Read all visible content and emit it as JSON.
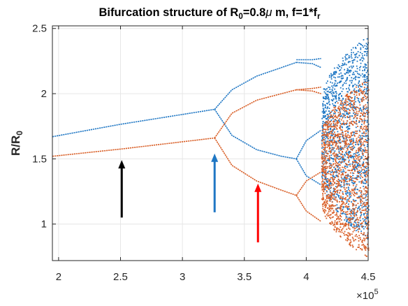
{
  "chart_data": {
    "type": "scatter",
    "title_parts": {
      "prefix": "Bifurcation structure  of R",
      "sub_0": "0",
      "mid": "=0.8",
      "mu": "μ",
      "unit_f": " m, f=1*f",
      "sub_r": "r"
    },
    "ylabel_main": "R/R",
    "ylabel_sub": "0",
    "x_exponent_times": "×10",
    "x_exponent_power": "5",
    "xlim": [
      195000,
      450000
    ],
    "ylim": [
      0.72,
      2.52
    ],
    "x_ticks": [
      {
        "value": 200000,
        "label": "2"
      },
      {
        "value": 250000,
        "label": "2.5"
      },
      {
        "value": 300000,
        "label": "3"
      },
      {
        "value": 350000,
        "label": "3.5"
      },
      {
        "value": 400000,
        "label": "4"
      },
      {
        "value": 450000,
        "label": "4.5"
      }
    ],
    "y_ticks": [
      {
        "value": 1,
        "label": "1"
      },
      {
        "value": 1.5,
        "label": "1.5"
      },
      {
        "value": 2,
        "label": "2"
      },
      {
        "value": 2.5,
        "label": "2.5"
      }
    ],
    "grid": true,
    "series": [
      {
        "color": "#1f77c4",
        "branches": [
          {
            "x": [
              195000,
              250000,
              326000
            ],
            "y": [
              1.67,
              1.765,
              1.88
            ]
          },
          {
            "x": [
              326000,
              340000,
              360000,
              380000,
              392000
            ],
            "y": [
              1.88,
              2.03,
              2.135,
              2.2,
              2.24
            ]
          },
          {
            "x": [
              326000,
              340000,
              360000,
              380000,
              392000
            ],
            "y": [
              1.88,
              1.68,
              1.57,
              1.52,
              1.5
            ]
          },
          {
            "x": [
              392000,
              405000,
              412000
            ],
            "y": [
              2.26,
              2.26,
              2.27
            ]
          },
          {
            "x": [
              392000,
              405000,
              412000
            ],
            "y": [
              2.24,
              2.23,
              2.2
            ]
          },
          {
            "x": [
              392000,
              400000,
              412000
            ],
            "y": [
              1.5,
              1.64,
              1.72
            ]
          },
          {
            "x": [
              392000,
              400000,
              412000
            ],
            "y": [
              1.5,
              1.37,
              1.3
            ]
          }
        ],
        "chaos": {
          "x_start": 412000,
          "x_end": 450000,
          "y_min": 0.88,
          "y_max": 2.45
        }
      },
      {
        "color": "#d95f27",
        "branches": [
          {
            "x": [
              195000,
              250000,
              326000
            ],
            "y": [
              1.52,
              1.575,
              1.66
            ]
          },
          {
            "x": [
              326000,
              340000,
              360000,
              380000,
              392000
            ],
            "y": [
              1.66,
              1.85,
              1.95,
              2.0,
              2.03
            ]
          },
          {
            "x": [
              326000,
              340000,
              360000,
              380000,
              392000
            ],
            "y": [
              1.66,
              1.45,
              1.33,
              1.26,
              1.22
            ]
          },
          {
            "x": [
              392000,
              405000,
              412000
            ],
            "y": [
              2.03,
              2.04,
              2.05
            ]
          },
          {
            "x": [
              392000,
              405000,
              412000
            ],
            "y": [
              2.03,
              2.02,
              2.0
            ]
          },
          {
            "x": [
              392000,
              400000,
              412000
            ],
            "y": [
              1.22,
              1.33,
              1.4
            ]
          },
          {
            "x": [
              392000,
              400000,
              412000
            ],
            "y": [
              1.22,
              1.1,
              1.02
            ]
          }
        ],
        "chaos": {
          "x_start": 412000,
          "x_end": 450000,
          "y_min": 0.74,
          "y_max": 2.12
        }
      }
    ],
    "arrows": [
      {
        "color": "#000000",
        "x": 251000,
        "y_from": 1.05,
        "y_to": 1.48
      },
      {
        "color": "#1f77c4",
        "x": 326000,
        "y_from": 1.09,
        "y_to": 1.53
      },
      {
        "color": "#ff0000",
        "x": 361000,
        "y_from": 0.86,
        "y_to": 1.3
      }
    ]
  }
}
